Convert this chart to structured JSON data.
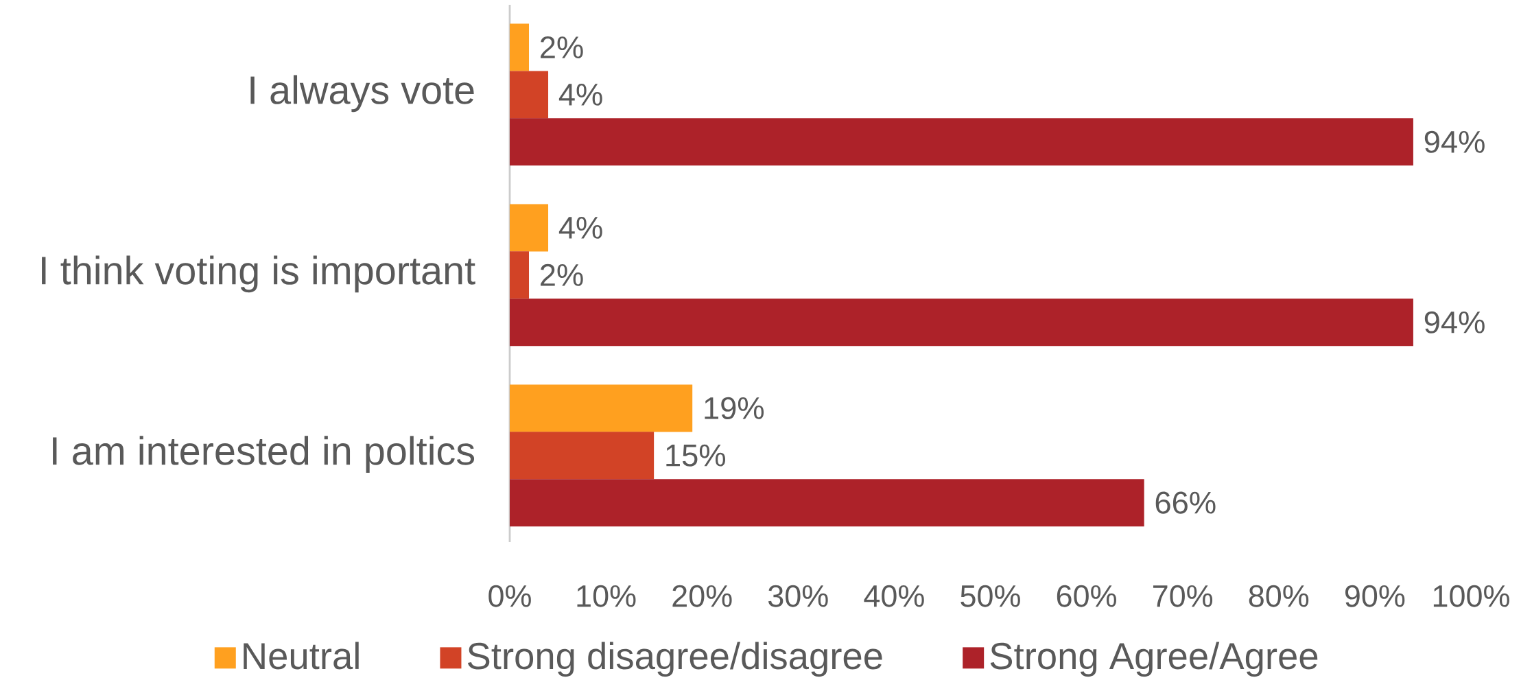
{
  "chart_data": {
    "type": "bar",
    "orientation": "horizontal",
    "categories": [
      "I always vote",
      "I think voting is important",
      "I am interested in poltics"
    ],
    "series": [
      {
        "name": "Neutral",
        "color": "#ffa01f",
        "values": [
          2,
          4,
          19
        ],
        "value_labels": [
          "2%",
          "4%",
          "19%"
        ]
      },
      {
        "name": "Strong disagree/disagree",
        "color": "#d24326",
        "values": [
          4,
          2,
          15
        ],
        "value_labels": [
          "4%",
          "2%",
          "15%"
        ]
      },
      {
        "name": "Strong Agree/Agree",
        "color": "#ad2229",
        "values": [
          94,
          94,
          66
        ],
        "value_labels": [
          "94%",
          "94%",
          "66%"
        ]
      }
    ],
    "xlim": [
      0,
      100
    ],
    "xticks": [
      {
        "value": 0,
        "label": "0%"
      },
      {
        "value": 10,
        "label": "10%"
      },
      {
        "value": 20,
        "label": "20%"
      },
      {
        "value": 30,
        "label": "30%"
      },
      {
        "value": 40,
        "label": "40%"
      },
      {
        "value": 50,
        "label": "50%"
      },
      {
        "value": 60,
        "label": "60%"
      },
      {
        "value": 70,
        "label": "70%"
      },
      {
        "value": 80,
        "label": "80%"
      },
      {
        "value": 90,
        "label": "90%"
      },
      {
        "value": 100,
        "label": "100%"
      }
    ],
    "grid": false,
    "legend": "bottom"
  }
}
